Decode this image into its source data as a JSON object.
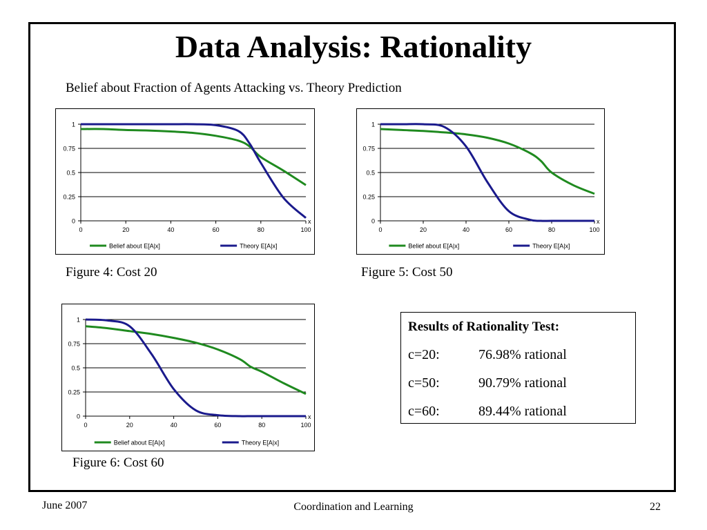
{
  "slide": {
    "title": "Data Analysis: Rationality",
    "subtitle": "Belief about Fraction of Agents Attacking vs. Theory Prediction"
  },
  "figures": [
    {
      "caption": "Figure 4: Cost 20"
    },
    {
      "caption": "Figure 5: Cost 50"
    },
    {
      "caption": "Figure 6: Cost 60"
    }
  ],
  "results": {
    "title": "Results of Rationality Test:",
    "rows": [
      {
        "cost": "c=20:",
        "value": "76.98% rational"
      },
      {
        "cost": "c=50:",
        "value": "90.79% rational"
      },
      {
        "cost": "c=60:",
        "value": "89.44% rational"
      }
    ]
  },
  "footer": {
    "date": "June 2007",
    "center": "Coordination and Learning",
    "page": "22"
  },
  "colors": {
    "belief": "#1f8a1f",
    "theory": "#1a1a8c"
  },
  "chart_data": [
    {
      "type": "line",
      "x_axis_title": "x",
      "x": [
        0,
        10,
        20,
        30,
        40,
        50,
        60,
        70,
        75,
        80,
        90,
        100
      ],
      "xticks": [
        "0",
        "20",
        "40",
        "60",
        "80",
        "100"
      ],
      "yticks": [
        "0",
        "0.25",
        "0.5",
        "0.75",
        "1"
      ],
      "xlim": [
        0,
        100
      ],
      "ylim": [
        0,
        1
      ],
      "grid": "horizontal",
      "legend": "bottom",
      "series": [
        {
          "name": "Belief about E[A|x]",
          "values": [
            0.95,
            0.95,
            0.94,
            0.935,
            0.925,
            0.91,
            0.88,
            0.83,
            0.77,
            0.66,
            0.52,
            0.37
          ]
        },
        {
          "name": "Theory E[A|x]",
          "values": [
            1,
            1,
            1,
            1,
            1,
            1,
            0.99,
            0.93,
            0.8,
            0.6,
            0.24,
            0.03
          ]
        }
      ]
    },
    {
      "type": "line",
      "x_axis_title": "x",
      "x": [
        0,
        10,
        20,
        30,
        40,
        50,
        60,
        70,
        75,
        80,
        90,
        100
      ],
      "xticks": [
        "0",
        "20",
        "40",
        "60",
        "80",
        "100"
      ],
      "yticks": [
        "0",
        "0.25",
        "0.5",
        "0.75",
        "1"
      ],
      "xlim": [
        0,
        100
      ],
      "ylim": [
        0,
        1
      ],
      "grid": "horizontal",
      "legend": "bottom",
      "series": [
        {
          "name": "Belief about E[A|x]",
          "values": [
            0.95,
            0.94,
            0.93,
            0.915,
            0.895,
            0.86,
            0.8,
            0.7,
            0.62,
            0.5,
            0.37,
            0.28
          ]
        },
        {
          "name": "Theory E[A|x]",
          "values": [
            1,
            1,
            1,
            0.97,
            0.77,
            0.4,
            0.1,
            0.01,
            0,
            0,
            0,
            0
          ]
        }
      ]
    },
    {
      "type": "line",
      "x_axis_title": "x",
      "x": [
        0,
        10,
        20,
        30,
        40,
        50,
        60,
        70,
        75,
        80,
        90,
        100
      ],
      "xticks": [
        "0",
        "20",
        "40",
        "60",
        "80",
        "100"
      ],
      "yticks": [
        "0",
        "0.25",
        "0.5",
        "0.75",
        "1"
      ],
      "xlim": [
        0,
        100
      ],
      "ylim": [
        0,
        1
      ],
      "grid": "horizontal",
      "legend": "bottom",
      "series": [
        {
          "name": "Belief about E[A|x]",
          "values": [
            0.93,
            0.91,
            0.88,
            0.85,
            0.81,
            0.76,
            0.69,
            0.59,
            0.51,
            0.46,
            0.34,
            0.23
          ]
        },
        {
          "name": "Theory E[A|x]",
          "values": [
            1,
            0.99,
            0.93,
            0.64,
            0.28,
            0.06,
            0.01,
            0,
            0,
            0,
            0,
            0
          ]
        }
      ]
    }
  ]
}
